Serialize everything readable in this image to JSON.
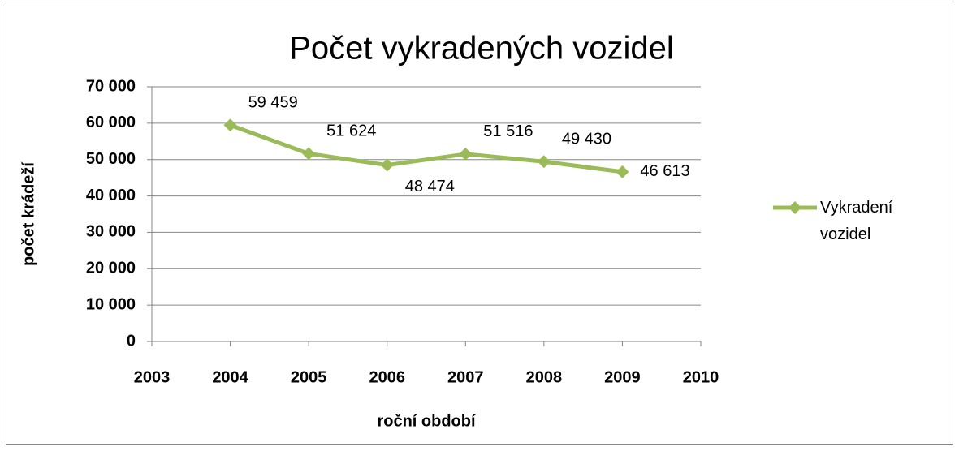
{
  "chart_data": {
    "type": "line",
    "title": "Počet vykradených vozidel",
    "x_label": "roční období",
    "y_label": "počet krádeží",
    "x": [
      2004,
      2005,
      2006,
      2007,
      2008,
      2009
    ],
    "xlim": [
      2003,
      2010
    ],
    "xticks": [
      2003,
      2004,
      2005,
      2006,
      2007,
      2008,
      2009,
      2010
    ],
    "ylim": [
      0,
      70000
    ],
    "yticks": [
      0,
      {
        "value": 10000,
        "label": "10 000"
      },
      {
        "value": 20000,
        "label": "20 000"
      },
      {
        "value": 30000,
        "label": "30 000"
      },
      {
        "value": 40000,
        "label": "40 000"
      },
      {
        "value": 50000,
        "label": "50 000"
      },
      {
        "value": 60000,
        "label": "60 000"
      },
      {
        "value": 70000,
        "label": "70 000"
      }
    ],
    "grid": true,
    "legend": "right",
    "series": [
      {
        "name": "Vykradení vozidel",
        "color": "#9bbb59",
        "values": [
          59459,
          51624,
          48474,
          51516,
          49430,
          46613
        ],
        "value_labels": [
          "59 459",
          "51 624",
          "48 474",
          "51 516",
          "49 430",
          "46 613"
        ]
      }
    ]
  }
}
